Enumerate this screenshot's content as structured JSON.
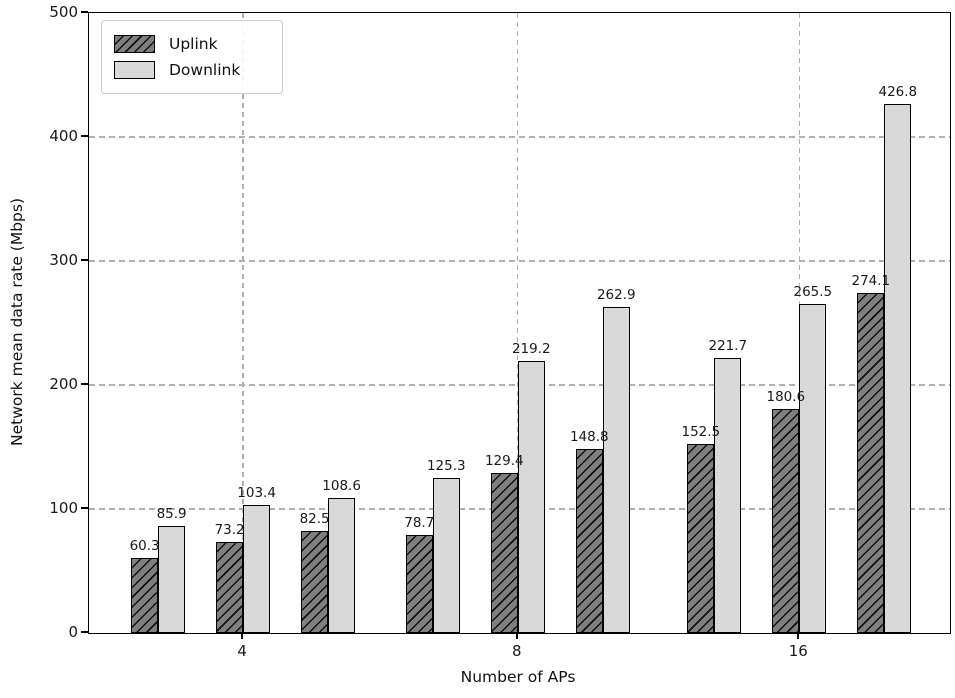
{
  "figure": {
    "xlabel": "Number of APs",
    "ylabel": "Network mean data rate (Mbps)"
  },
  "legend": {
    "items": [
      {
        "label": "Uplink",
        "swatch": "hatched-dark-gray"
      },
      {
        "label": "Downlink",
        "swatch": "solid-light-gray"
      }
    ],
    "position": "upper-left"
  },
  "colors": {
    "uplink_fill": "#7f7f7f",
    "downlink_fill": "#d9d9d9",
    "bar_edge": "#000000",
    "grid": "#b0b0b0",
    "background": "#ffffff"
  },
  "chart_data": {
    "type": "bar",
    "title": "",
    "xlabel": "Number of APs",
    "ylabel": "Network mean data rate (Mbps)",
    "ylim": [
      0,
      500
    ],
    "yticks": [
      0,
      100,
      200,
      300,
      400,
      500
    ],
    "xticks": [
      "4",
      "8",
      "16"
    ],
    "grid": "dashed, horizontal and vertical",
    "legend_position": "upper left",
    "bar_value_labels_shown": true,
    "categories": [
      "4",
      "8",
      "16"
    ],
    "series": [
      {
        "name": "Uplink",
        "values": [
          [
            60.3,
            73.2,
            82.5
          ],
          [
            78.7,
            129.4,
            148.8
          ],
          [
            152.5,
            180.6,
            274.1
          ]
        ]
      },
      {
        "name": "Downlink",
        "values": [
          [
            85.9,
            103.4,
            108.6
          ],
          [
            125.3,
            219.2,
            262.9
          ],
          [
            221.7,
            265.5,
            426.8
          ]
        ]
      }
    ]
  }
}
